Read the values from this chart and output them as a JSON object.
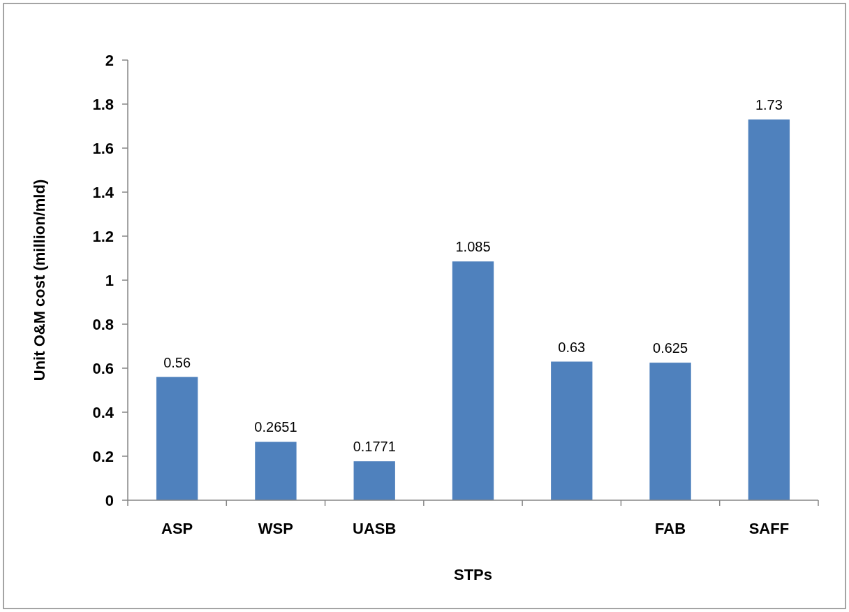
{
  "chart_data": {
    "type": "bar",
    "categories": [
      "ASP",
      "WSP",
      "UASB",
      null,
      null,
      "FAB",
      "SAFF"
    ],
    "values": [
      0.56,
      0.2651,
      0.1771,
      1.085,
      0.63,
      0.625,
      1.73
    ],
    "color": "#4f81bd",
    "xlabel": "STPs",
    "ylabel": "Unit O&M cost (million/mld)",
    "ylim": [
      0,
      2
    ],
    "yticks": [
      0,
      {
        "value": 0.2,
        "label": "0.2"
      },
      {
        "value": 0.4,
        "label": "0.4"
      },
      {
        "value": 0.6,
        "label": "0.6"
      },
      {
        "value": 0.8,
        "label": "0.8"
      },
      1,
      {
        "value": 1.2,
        "label": "1.2"
      },
      {
        "value": 1.4,
        "label": "1.4"
      },
      {
        "value": 1.6,
        "label": "1.6"
      },
      {
        "value": 1.8,
        "label": "1.8"
      },
      2
    ],
    "data_labels": true,
    "grid": false
  }
}
